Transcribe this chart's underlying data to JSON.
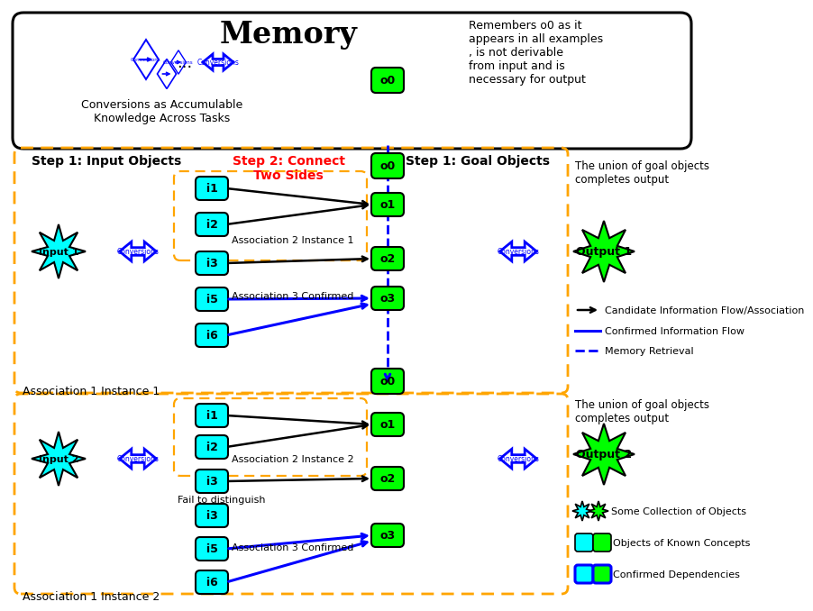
{
  "title_memory": "Memory",
  "memory_box_text": "Conversions as Accumulable\nKnowledge Across Tasks",
  "memory_reminder_text": "Remembers o0 as it\nappears in all examples\n, is not derivable\nfrom input and is\nnecessary for output",
  "step1_input_label": "Step 1: Input Objects",
  "step2_label": "Step 2: Connect\nTwo Sides",
  "step1_goal_label": "Step 1: Goal Objects",
  "assoc1_inst1": "Association 1 Instance 1",
  "assoc1_inst2": "Association 1 Instance 2",
  "assoc2_inst1": "Association 2 Instance 1",
  "assoc2_inst2": "Association 2 Instance 2",
  "assoc3_conf": "Association 3 Confirmed",
  "fail_distinguish": "Fail to distinguish",
  "union_text": "The union of goal objects\ncompletes output",
  "legend_candidate": "Candidate Information Flow/Association",
  "legend_confirmed": "Confirmed Information Flow",
  "legend_memory": "Memory Retrieval",
  "legend_collection": "Some Collection of Objects",
  "legend_known": "Objects of Known Concepts",
  "legend_dep": "Confirmed Dependencies",
  "cyan_color": "#00FFFF",
  "green_color": "#00FF00",
  "blue_color": "#0000FF",
  "orange_dashed": "#FFA500",
  "bg_color": "#FFFFFF",
  "fig_w": 7.61,
  "fig_h": 6.55
}
